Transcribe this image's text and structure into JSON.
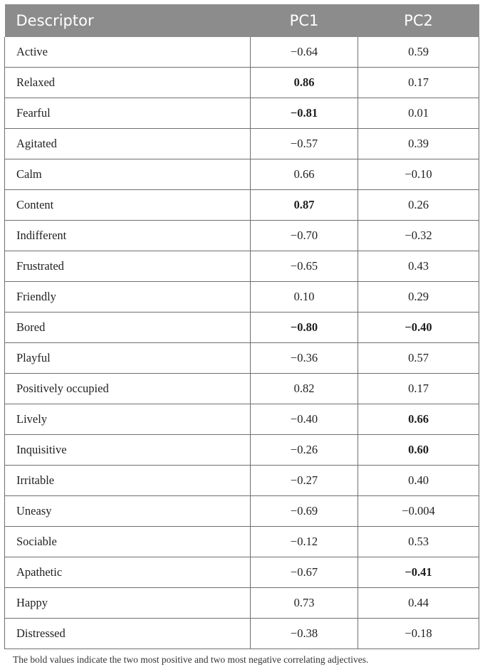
{
  "table": {
    "headers": [
      "Descriptor",
      "PC1",
      "PC2"
    ],
    "rows": [
      {
        "descriptor": "Active",
        "pc1": "−0.64",
        "pc2": "0.59",
        "pc1_bold": false,
        "pc2_bold": false
      },
      {
        "descriptor": "Relaxed",
        "pc1": "0.86",
        "pc2": "0.17",
        "pc1_bold": true,
        "pc2_bold": false
      },
      {
        "descriptor": "Fearful",
        "pc1": "−0.81",
        "pc2": "0.01",
        "pc1_bold": true,
        "pc2_bold": false
      },
      {
        "descriptor": "Agitated",
        "pc1": "−0.57",
        "pc2": "0.39",
        "pc1_bold": false,
        "pc2_bold": false
      },
      {
        "descriptor": "Calm",
        "pc1": "0.66",
        "pc2": "−0.10",
        "pc1_bold": false,
        "pc2_bold": false
      },
      {
        "descriptor": "Content",
        "pc1": "0.87",
        "pc2": "0.26",
        "pc1_bold": true,
        "pc2_bold": false
      },
      {
        "descriptor": "Indifferent",
        "pc1": "−0.70",
        "pc2": "−0.32",
        "pc1_bold": false,
        "pc2_bold": false
      },
      {
        "descriptor": "Frustrated",
        "pc1": "−0.65",
        "pc2": "0.43",
        "pc1_bold": false,
        "pc2_bold": false
      },
      {
        "descriptor": "Friendly",
        "pc1": "0.10",
        "pc2": "0.29",
        "pc1_bold": false,
        "pc2_bold": false
      },
      {
        "descriptor": "Bored",
        "pc1": "−0.80",
        "pc2": "−0.40",
        "pc1_bold": true,
        "pc2_bold": true
      },
      {
        "descriptor": "Playful",
        "pc1": "−0.36",
        "pc2": "0.57",
        "pc1_bold": false,
        "pc2_bold": false
      },
      {
        "descriptor": "Positively occupied",
        "pc1": "0.82",
        "pc2": "0.17",
        "pc1_bold": false,
        "pc2_bold": false
      },
      {
        "descriptor": "Lively",
        "pc1": "−0.40",
        "pc2": "0.66",
        "pc1_bold": false,
        "pc2_bold": true
      },
      {
        "descriptor": "Inquisitive",
        "pc1": "−0.26",
        "pc2": "0.60",
        "pc1_bold": false,
        "pc2_bold": true
      },
      {
        "descriptor": "Irritable",
        "pc1": "−0.27",
        "pc2": "0.40",
        "pc1_bold": false,
        "pc2_bold": false
      },
      {
        "descriptor": "Uneasy",
        "pc1": "−0.69",
        "pc2": "−0.004",
        "pc1_bold": false,
        "pc2_bold": false
      },
      {
        "descriptor": "Sociable",
        "pc1": "−0.12",
        "pc2": "0.53",
        "pc1_bold": false,
        "pc2_bold": false
      },
      {
        "descriptor": "Apathetic",
        "pc1": "−0.67",
        "pc2": "−0.41",
        "pc1_bold": false,
        "pc2_bold": true
      },
      {
        "descriptor": "Happy",
        "pc1": "0.73",
        "pc2": "0.44",
        "pc1_bold": false,
        "pc2_bold": false
      },
      {
        "descriptor": "Distressed",
        "pc1": "−0.38",
        "pc2": "−0.18",
        "pc1_bold": false,
        "pc2_bold": false
      }
    ]
  },
  "footnote": "The bold values indicate the two most positive and two most negative correlating adjectives.",
  "colors": {
    "header_background": "#8c8c8c",
    "header_text": "#ffffff",
    "grid_lines": "#6f6f6f"
  }
}
